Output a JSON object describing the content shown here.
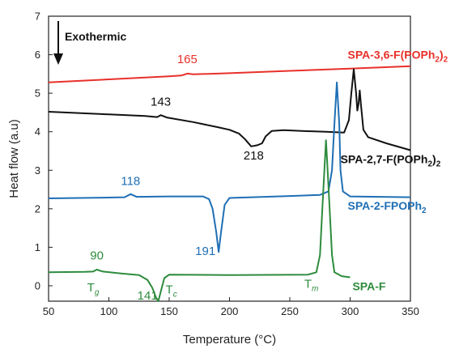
{
  "chart_data": {
    "type": "line",
    "xlabel": "Temperature (°C)",
    "ylabel": "Heat flow (a.u)",
    "xlim": [
      50,
      350
    ],
    "ylim": [
      -0.4,
      7
    ],
    "x_ticks": [
      50,
      100,
      150,
      200,
      250,
      300,
      350
    ],
    "y_ticks": [
      0,
      1,
      2,
      3,
      4,
      5,
      6,
      7
    ],
    "grid": false,
    "exotherm_label": "Exothermic",
    "series": [
      {
        "name": "SPA-3,6-F(POPh2)2",
        "label_main": "SPA-3,6-F(POPh",
        "label_sub": "2",
        "label_close": ")",
        "label_sub2": "2",
        "color": "#e8302a",
        "points": [
          [
            50,
            5.28
          ],
          [
            100,
            5.36
          ],
          [
            150,
            5.44
          ],
          [
            160,
            5.46
          ],
          [
            165,
            5.51
          ],
          [
            170,
            5.49
          ],
          [
            200,
            5.52
          ],
          [
            250,
            5.58
          ],
          [
            300,
            5.64
          ],
          [
            350,
            5.7
          ]
        ]
      },
      {
        "name": "SPA-2,7-F(POPh2)2",
        "label_main": "SPA-2,7-F(POPh",
        "label_sub": "2",
        "label_close": ")",
        "label_sub2": "2",
        "color": "#111111",
        "points": [
          [
            50,
            4.52
          ],
          [
            100,
            4.45
          ],
          [
            130,
            4.41
          ],
          [
            140,
            4.38
          ],
          [
            143,
            4.43
          ],
          [
            148,
            4.37
          ],
          [
            170,
            4.25
          ],
          [
            190,
            4.12
          ],
          [
            200,
            4.05
          ],
          [
            208,
            3.95
          ],
          [
            213,
            3.8
          ],
          [
            218,
            3.62
          ],
          [
            223,
            3.65
          ],
          [
            227,
            3.7
          ],
          [
            230,
            3.88
          ],
          [
            235,
            4.02
          ],
          [
            245,
            4.04
          ],
          [
            260,
            4.02
          ],
          [
            280,
            4.0
          ],
          [
            295,
            3.98
          ],
          [
            299,
            4.3
          ],
          [
            301,
            5.0
          ],
          [
            303,
            5.62
          ],
          [
            305,
            5.0
          ],
          [
            306,
            4.55
          ],
          [
            307,
            4.72
          ],
          [
            308,
            5.07
          ],
          [
            309,
            4.7
          ],
          [
            311,
            4.05
          ],
          [
            315,
            3.86
          ],
          [
            330,
            3.7
          ],
          [
            350,
            3.52
          ]
        ]
      },
      {
        "name": "SPA-2-FPOPh2",
        "label_main": "SPA-2-FPOPh",
        "label_sub": "2",
        "label_close": "",
        "label_sub2": "",
        "color": "#1f6fb5",
        "points": [
          [
            50,
            2.27
          ],
          [
            100,
            2.29
          ],
          [
            113,
            2.3
          ],
          [
            118,
            2.38
          ],
          [
            123,
            2.31
          ],
          [
            150,
            2.32
          ],
          [
            178,
            2.32
          ],
          [
            183,
            2.25
          ],
          [
            186,
            2.0
          ],
          [
            189,
            1.4
          ],
          [
            191,
            0.88
          ],
          [
            193,
            1.4
          ],
          [
            196,
            2.1
          ],
          [
            200,
            2.28
          ],
          [
            250,
            2.33
          ],
          [
            275,
            2.36
          ],
          [
            282,
            2.45
          ],
          [
            285,
            3.0
          ],
          [
            287,
            4.2
          ],
          [
            289,
            5.28
          ],
          [
            291,
            4.2
          ],
          [
            292,
            3.0
          ],
          [
            294,
            2.45
          ],
          [
            300,
            2.32
          ],
          [
            350,
            2.3
          ]
        ]
      },
      {
        "name": "SPA-F",
        "label_main": "SPA-F",
        "label_sub": "",
        "label_close": "",
        "label_sub2": "",
        "color": "#2e8b3d",
        "points": [
          [
            50,
            0.35
          ],
          [
            80,
            0.36
          ],
          [
            87,
            0.37
          ],
          [
            90,
            0.42
          ],
          [
            95,
            0.37
          ],
          [
            110,
            0.32
          ],
          [
            125,
            0.28
          ],
          [
            132,
            0.15
          ],
          [
            136,
            -0.05
          ],
          [
            139,
            -0.3
          ],
          [
            141,
            -0.4
          ],
          [
            143,
            -0.15
          ],
          [
            146,
            0.2
          ],
          [
            150,
            0.29
          ],
          [
            200,
            0.28
          ],
          [
            265,
            0.29
          ],
          [
            272,
            0.35
          ],
          [
            275,
            0.8
          ],
          [
            277,
            2.0
          ],
          [
            279,
            3.2
          ],
          [
            280,
            3.78
          ],
          [
            281,
            3.2
          ],
          [
            283,
            2.0
          ],
          [
            285,
            0.8
          ],
          [
            287,
            0.35
          ],
          [
            293,
            0.25
          ],
          [
            300,
            0.22
          ]
        ]
      }
    ],
    "annotations": [
      {
        "text": "165",
        "x": 165,
        "y": 5.78,
        "color": "#e8302a"
      },
      {
        "text": "143",
        "x": 143,
        "y": 4.68,
        "color": "#111111"
      },
      {
        "text": "218",
        "x": 220,
        "y": 3.28,
        "color": "#111111"
      },
      {
        "text": "118",
        "x": 118,
        "y": 2.62,
        "color": "#1f6fb5"
      },
      {
        "text": "191",
        "x": 180,
        "y": 0.8,
        "color": "#1f6fb5"
      },
      {
        "text": "90",
        "x": 90,
        "y": 0.68,
        "color": "#2e8b3d"
      },
      {
        "text": "141",
        "x": 132,
        "y": -0.36,
        "color": "#2e8b3d"
      }
    ],
    "transition_labels": [
      {
        "main": "T",
        "sub": "g",
        "x": 82,
        "y": -0.15,
        "color": "#2e8b3d"
      },
      {
        "main": "T",
        "sub": "c",
        "x": 147,
        "y": -0.2,
        "color": "#2e8b3d"
      },
      {
        "main": "T",
        "sub": "m",
        "x": 262,
        "y": -0.05,
        "color": "#2e8b3d"
      }
    ],
    "series_label_positions": [
      {
        "x": 298,
        "y": 5.9
      },
      {
        "x": 292,
        "y": 3.18
      },
      {
        "x": 298,
        "y": 1.98
      },
      {
        "x": 302,
        "y": -0.12
      }
    ]
  }
}
